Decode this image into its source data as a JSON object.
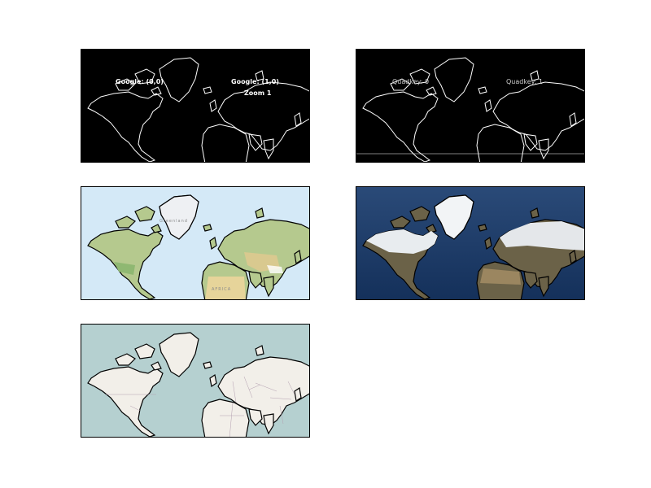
{
  "panels": {
    "google_tiles": {
      "labels": [
        "Google: (0,0)",
        "Google: (1,0)",
        "Zoom 1"
      ],
      "background": "#000000",
      "coastline": "#ffffff"
    },
    "quadkey_tiles": {
      "labels": [
        "Quadkey: 0",
        "Quadkey: 1"
      ],
      "background": "#000000",
      "coastline": "#ffffff"
    },
    "terrain_map": {
      "labels": [
        "Greenland",
        "AFRICA"
      ],
      "ocean": "#d4e9f7",
      "land": "#b5c98e"
    },
    "satellite_map": {
      "ocean": "#1b3a66",
      "land": "#6b6248",
      "ice": "#f2f4f6"
    },
    "street_map": {
      "ocean": "#b5d0d0",
      "land": "#f2efe9"
    }
  }
}
